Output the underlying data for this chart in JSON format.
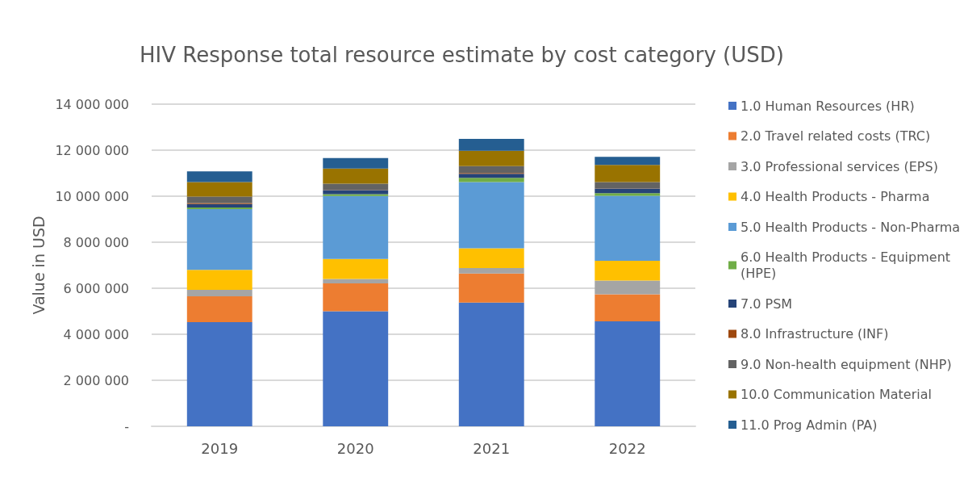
{
  "chart_data": {
    "type": "bar",
    "title": "HIV Response total resource estimate by cost category (USD)",
    "ylabel": "Value in USD",
    "categories": [
      "2019",
      "2020",
      "2021",
      "2022"
    ],
    "stacked": true,
    "grid": "y",
    "legend": "right",
    "ylim": [
      0,
      14000000
    ],
    "yticks": [
      {
        "value": 0,
        "label": "-"
      },
      {
        "value": 2000000,
        "label": "2 000 000"
      },
      {
        "value": 4000000,
        "label": "4 000 000"
      },
      {
        "value": 6000000,
        "label": "6 000 000"
      },
      {
        "value": 8000000,
        "label": "8 000 000"
      },
      {
        "value": 10000000,
        "label": "10 000 000"
      },
      {
        "value": 12000000,
        "label": "12 000 000"
      },
      {
        "value": 14000000,
        "label": "14 000 000"
      }
    ],
    "series": [
      {
        "name": "1.0 Human Resources (HR)",
        "color": "#4472c4",
        "values": [
          4530000,
          5000000,
          5380000,
          4560000
        ]
      },
      {
        "name": "2.0 Travel related costs (TRC)",
        "color": "#ed7d31",
        "values": [
          1120000,
          1210000,
          1260000,
          1180000
        ]
      },
      {
        "name": "3.0 Professional services (EPS)",
        "color": "#a5a5a5",
        "values": [
          280000,
          190000,
          240000,
          590000
        ]
      },
      {
        "name": "4.0 Health Products - Pharma",
        "color": "#ffc000",
        "values": [
          870000,
          870000,
          860000,
          860000
        ]
      },
      {
        "name": "5.0 Health Products - Non-Pharma",
        "color": "#5b9bd5",
        "values": [
          2640000,
          2740000,
          2870000,
          2830000
        ]
      },
      {
        "name": "6.0 Health Products - Equipment (HPE)",
        "color": "#70ad47",
        "values": [
          70000,
          80000,
          190000,
          110000
        ]
      },
      {
        "name": "7.0 PSM",
        "color": "#264478",
        "values": [
          150000,
          170000,
          170000,
          200000
        ]
      },
      {
        "name": "8.0 Infrastructure (INF)",
        "color": "#9e480e",
        "values": [
          40000,
          10000,
          40000,
          10000
        ]
      },
      {
        "name": "9.0 Non-health equipment (NHP)",
        "color": "#636363",
        "values": [
          280000,
          270000,
          300000,
          270000
        ]
      },
      {
        "name": "10.0 Communication Material",
        "color": "#997300",
        "values": [
          630000,
          660000,
          660000,
          750000
        ]
      },
      {
        "name": "11.0 Prog Admin (PA)",
        "color": "#255e91",
        "values": [
          470000,
          460000,
          520000,
          350000
        ]
      }
    ]
  }
}
